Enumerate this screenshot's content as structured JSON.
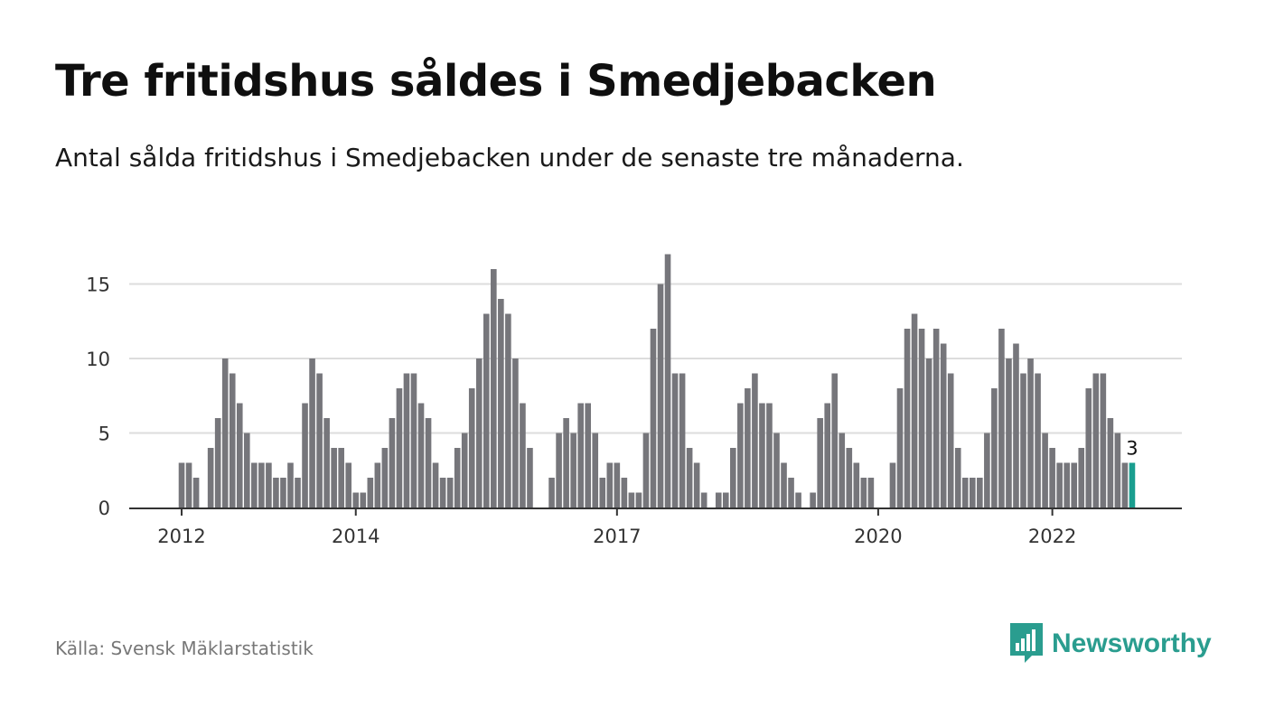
{
  "header": {
    "title": "Tre fritidshus såldes i Smedjebacken",
    "subtitle": "Antal sålda fritidshus i Smedjebacken under de senaste tre månaderna."
  },
  "footer": {
    "source": "Källa: Svensk Mäklarstatistik",
    "brand": "Newsworthy"
  },
  "colors": {
    "bar": "#76767b",
    "highlight": "#1a9e8f",
    "brand": "#2a9d8f",
    "grid": "#dddddd",
    "axis": "#333333"
  },
  "chart_data": {
    "type": "bar",
    "x_start": "2011-12",
    "x_unit": "month",
    "values": [
      0,
      3,
      3,
      2,
      0,
      4,
      6,
      10,
      9,
      7,
      5,
      3,
      3,
      3,
      2,
      2,
      3,
      2,
      7,
      10,
      9,
      6,
      4,
      4,
      3,
      1,
      1,
      2,
      3,
      4,
      6,
      8,
      9,
      9,
      7,
      6,
      3,
      2,
      2,
      4,
      5,
      8,
      10,
      13,
      16,
      14,
      13,
      10,
      7,
      4,
      0,
      0,
      2,
      5,
      6,
      5,
      7,
      7,
      5,
      2,
      3,
      3,
      2,
      1,
      1,
      5,
      12,
      15,
      17,
      9,
      9,
      4,
      3,
      1,
      0,
      1,
      1,
      4,
      7,
      8,
      9,
      7,
      7,
      5,
      3,
      2,
      1,
      0,
      1,
      6,
      7,
      9,
      5,
      4,
      3,
      2,
      2,
      0,
      0,
      3,
      8,
      12,
      13,
      12,
      10,
      12,
      11,
      9,
      4,
      2,
      2,
      2,
      5,
      8,
      12,
      10,
      11,
      9,
      10,
      9,
      5,
      4,
      3,
      3,
      3,
      4,
      8,
      9,
      9,
      6,
      5,
      3,
      3
    ],
    "highlight_last": true,
    "last_label": "3",
    "x_ticks": [
      {
        "label": "2012",
        "index": 1
      },
      {
        "label": "2014",
        "index": 25
      },
      {
        "label": "2017",
        "index": 61
      },
      {
        "label": "2020",
        "index": 97
      },
      {
        "label": "2022",
        "index": 121
      }
    ],
    "y_ticks": [
      0,
      5,
      10,
      15
    ],
    "ylim": [
      0,
      17
    ],
    "grid": true,
    "xlabel": "",
    "ylabel": ""
  }
}
